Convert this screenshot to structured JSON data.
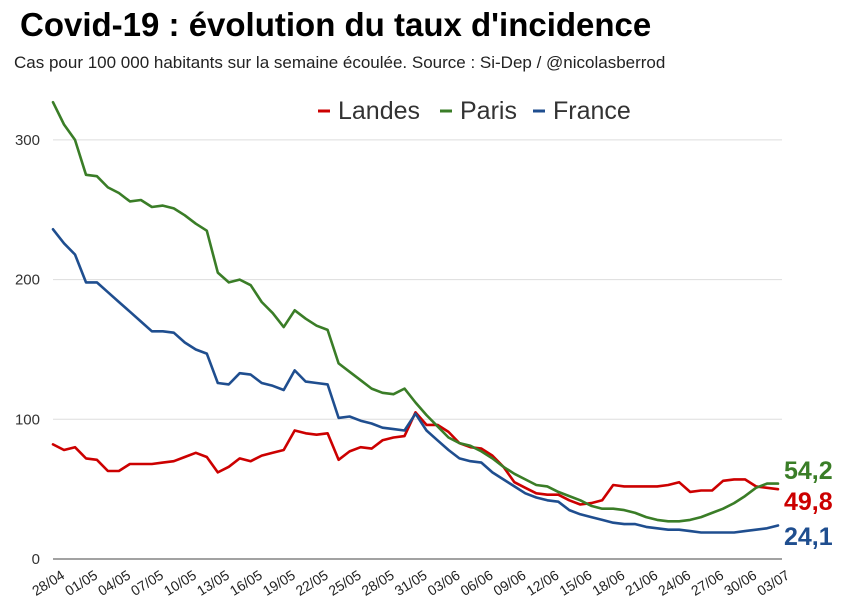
{
  "chart_data": {
    "type": "line",
    "title": "Covid-19 : évolution du taux d'incidence",
    "subtitle": "Cas pour 100 000 habitants sur la semaine écoulée. Source : Si-Dep / @nicolasberrod",
    "xlabel": "",
    "ylabel": "",
    "ylim": [
      0,
      330
    ],
    "yticks": [
      0,
      100,
      200,
      300
    ],
    "grid": true,
    "legend_position": "top-right",
    "x": [
      "28/04",
      "29/04",
      "30/04",
      "01/05",
      "02/05",
      "03/05",
      "04/05",
      "05/05",
      "06/05",
      "07/05",
      "08/05",
      "09/05",
      "10/05",
      "11/05",
      "12/05",
      "13/05",
      "14/05",
      "15/05",
      "16/05",
      "17/05",
      "18/05",
      "19/05",
      "20/05",
      "21/05",
      "22/05",
      "23/05",
      "24/05",
      "25/05",
      "26/05",
      "27/05",
      "28/05",
      "29/05",
      "30/05",
      "31/05",
      "01/06",
      "02/06",
      "03/06",
      "04/06",
      "05/06",
      "06/06",
      "07/06",
      "08/06",
      "09/06",
      "10/06",
      "11/06",
      "12/06",
      "13/06",
      "14/06",
      "15/06",
      "16/06",
      "17/06",
      "18/06",
      "19/06",
      "20/06",
      "21/06",
      "22/06",
      "23/06",
      "24/06",
      "25/06",
      "26/06",
      "27/06",
      "28/06",
      "29/06",
      "30/06",
      "01/07",
      "02/07",
      "03/07"
    ],
    "xtick_labels": [
      "28/04",
      "01/05",
      "04/05",
      "07/05",
      "10/05",
      "13/05",
      "16/05",
      "19/05",
      "22/05",
      "25/05",
      "28/05",
      "31/05",
      "03/06",
      "06/06",
      "09/06",
      "12/06",
      "15/06",
      "18/06",
      "21/06",
      "24/06",
      "27/06",
      "30/06",
      "03/07"
    ],
    "series": [
      {
        "name": "Landes",
        "color": "#cc0000",
        "end_label": "49,8",
        "values": [
          82,
          78,
          80,
          72,
          71,
          63,
          63,
          68,
          68,
          68,
          69,
          70,
          73,
          76,
          73,
          62,
          66,
          72,
          70,
          74,
          76,
          78,
          92,
          90,
          89,
          90,
          71,
          77,
          80,
          79,
          85,
          87,
          88,
          105,
          96,
          96,
          91,
          83,
          80,
          79,
          74,
          66,
          55,
          51,
          47,
          46,
          46,
          42,
          39,
          40,
          42,
          53,
          52,
          52,
          52,
          52,
          53,
          55,
          48,
          49,
          49,
          56,
          57,
          57,
          52,
          51,
          50
        ]
      },
      {
        "name": "Paris",
        "color": "#3a7d27",
        "end_label": "54,2",
        "values": [
          327,
          311,
          300,
          275,
          274,
          266,
          262,
          256,
          257,
          252,
          253,
          251,
          246,
          240,
          235,
          205,
          198,
          200,
          196,
          184,
          176,
          166,
          178,
          172,
          167,
          164,
          140,
          134,
          128,
          122,
          119,
          118,
          122,
          112,
          103,
          95,
          87,
          83,
          81,
          77,
          72,
          66,
          61,
          57,
          53,
          52,
          48,
          45,
          42,
          38,
          36,
          36,
          35,
          33,
          30,
          28,
          27,
          27,
          28,
          30,
          33,
          36,
          40,
          45,
          51,
          54,
          54
        ]
      },
      {
        "name": "France",
        "color": "#1f4e8f",
        "end_label": "24,1",
        "values": [
          236,
          226,
          218,
          198,
          198,
          191,
          184,
          177,
          170,
          163,
          163,
          162,
          155,
          150,
          147,
          126,
          125,
          133,
          132,
          126,
          124,
          121,
          135,
          127,
          126,
          125,
          101,
          102,
          99,
          97,
          94,
          93,
          92,
          104,
          92,
          85,
          78,
          72,
          70,
          69,
          62,
          57,
          52,
          47,
          44,
          42,
          41,
          35,
          32,
          30,
          28,
          26,
          25,
          25,
          23,
          22,
          21,
          21,
          20,
          19,
          19,
          19,
          19,
          20,
          21,
          22,
          24
        ]
      }
    ]
  }
}
